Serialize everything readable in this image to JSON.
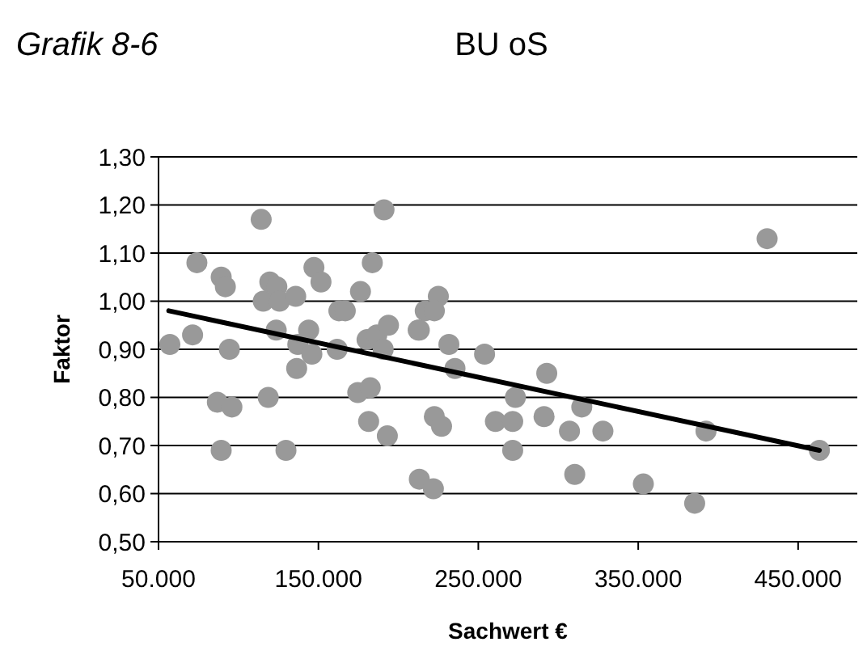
{
  "chart_data": {
    "type": "scatter",
    "title": "BU oS",
    "annotations": [
      "Grafik 8-6"
    ],
    "xlabel": "Sachwert €",
    "ylabel": "Faktor",
    "xlim": [
      50000,
      487000
    ],
    "xticks": [
      {
        "value": 50000,
        "label": "50.000"
      },
      {
        "value": 150000,
        "label": "150.000"
      },
      {
        "value": 250000,
        "label": "250.000"
      },
      {
        "value": 350000,
        "label": "350.000"
      },
      {
        "value": 450000,
        "label": "450.000"
      }
    ],
    "ylim": [
      0.5,
      1.3
    ],
    "yticks": [
      {
        "value": 0.5,
        "label": "0,50"
      },
      {
        "value": 0.6,
        "label": "0,60"
      },
      {
        "value": 0.7,
        "label": "0,70"
      },
      {
        "value": 0.8,
        "label": "0,80"
      },
      {
        "value": 0.9,
        "label": "0,90"
      },
      {
        "value": 1.0,
        "label": "1,00"
      },
      {
        "value": 1.1,
        "label": "1,10"
      },
      {
        "value": 1.2,
        "label": "1,20"
      },
      {
        "value": 1.3,
        "label": "1,30"
      }
    ],
    "grid": "y",
    "series": [
      {
        "marker": "circle",
        "color": "#999999",
        "x": [
          57100,
          71300,
          74000,
          89200,
          91800,
          94300,
          86800,
          95900,
          89200,
          118600,
          129700,
          115500,
          119600,
          124000,
          125700,
          123600,
          135800,
          136400,
          137100,
          143900,
          145900,
          147200,
          151600,
          161700,
          162800,
          166800,
          176300,
          174600,
          182400,
          181400,
          183700,
          180400,
          186500,
          190500,
          193800,
          193100,
          213100,
          213100,
          216800,
          221900,
          225000,
          222500,
          212400,
          231600,
          253900,
          235400,
          292800,
          273200,
          222500,
          227000,
          260700,
          271500,
          291100,
          314700,
          307000,
          327900,
          271500,
          310300,
          353200,
          385300,
          392400,
          463300,
          430600,
          114200,
          191000
        ],
        "values": [
          0.91,
          0.93,
          1.08,
          1.05,
          1.03,
          0.9,
          0.79,
          0.78,
          0.69,
          0.8,
          0.69,
          1.0,
          1.04,
          1.03,
          1.0,
          0.94,
          1.01,
          0.86,
          0.91,
          0.94,
          0.89,
          1.07,
          1.04,
          0.9,
          0.98,
          0.98,
          1.02,
          0.81,
          0.82,
          0.75,
          1.08,
          0.92,
          0.93,
          0.9,
          0.95,
          0.72,
          0.94,
          0.63,
          0.98,
          0.61,
          1.01,
          0.98,
          0.94,
          0.91,
          0.89,
          0.86,
          0.85,
          0.8,
          0.76,
          0.74,
          0.75,
          0.75,
          0.76,
          0.78,
          0.73,
          0.73,
          0.69,
          0.64,
          0.62,
          0.58,
          0.73,
          0.69,
          1.13,
          1.17,
          1.19
        ]
      },
      {
        "type": "line",
        "color": "#000000",
        "x": [
          56400,
          463300
        ],
        "values": [
          0.98,
          0.69
        ]
      }
    ]
  }
}
